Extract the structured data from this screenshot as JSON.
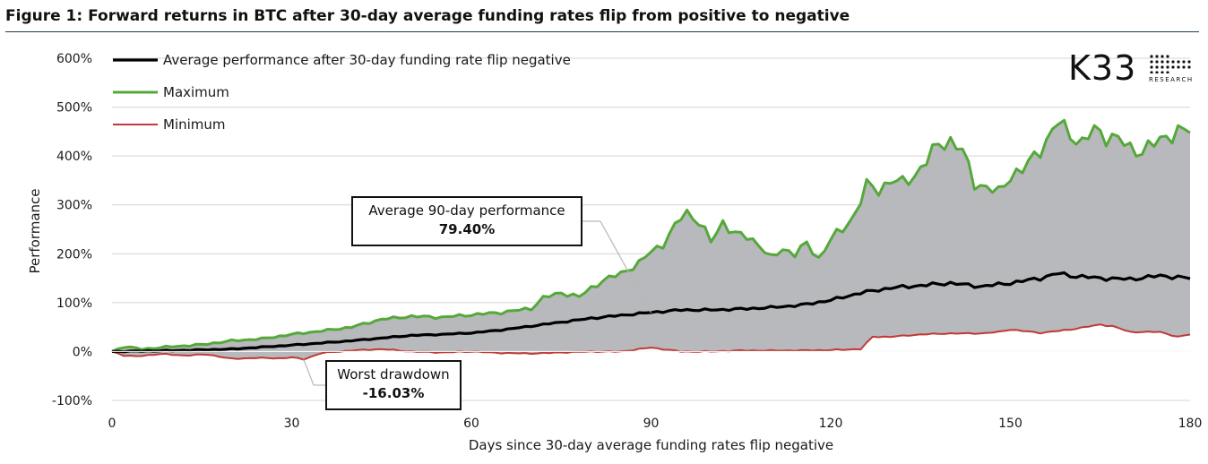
{
  "figure": {
    "title": "Figure 1: Forward returns in BTC after 30-day average funding rates flip from positive to negative"
  },
  "logo": {
    "mark": "K33",
    "sub": "RESEARCH"
  },
  "colors": {
    "average": "#000000",
    "maximum": "#55a83a",
    "minimum": "#c03a35",
    "fill": "#b8b9bc",
    "grid": "#d4d4d4"
  },
  "annotations": {
    "avg": {
      "label": "Average 90-day performance",
      "value": "79.40%"
    },
    "dd": {
      "label": "Worst drawdown",
      "value": "-16.03%"
    }
  },
  "chart_data": {
    "type": "line",
    "title": "",
    "xlabel": "Days since 30-day average funding rates flip negative",
    "ylabel": "Performance",
    "xlim": [
      0,
      180
    ],
    "ylim": [
      -100,
      600
    ],
    "xticks": [
      0,
      30,
      60,
      90,
      120,
      150,
      180
    ],
    "yticks": [
      -100,
      0,
      100,
      200,
      300,
      400,
      500,
      600
    ],
    "ytick_labels": [
      "-100%",
      "0%",
      "100%",
      "200%",
      "300%",
      "400%",
      "500%",
      "600%"
    ],
    "legend_position": "top-left",
    "fill_between": [
      "Maximum",
      "Minimum"
    ],
    "series": [
      {
        "name": "Average performance after 30-day funding rate flip negative",
        "knots": [
          [
            0,
            0
          ],
          [
            10,
            2
          ],
          [
            20,
            5
          ],
          [
            30,
            13
          ],
          [
            40,
            22
          ],
          [
            50,
            33
          ],
          [
            55,
            35
          ],
          [
            60,
            38
          ],
          [
            65,
            44
          ],
          [
            70,
            52
          ],
          [
            75,
            60
          ],
          [
            80,
            68
          ],
          [
            85,
            74
          ],
          [
            90,
            80
          ],
          [
            95,
            85
          ],
          [
            100,
            85
          ],
          [
            105,
            87
          ],
          [
            110,
            90
          ],
          [
            115,
            95
          ],
          [
            120,
            105
          ],
          [
            125,
            120
          ],
          [
            130,
            130
          ],
          [
            135,
            135
          ],
          [
            140,
            140
          ],
          [
            145,
            133
          ],
          [
            150,
            140
          ],
          [
            155,
            150
          ],
          [
            158,
            160
          ],
          [
            160,
            155
          ],
          [
            165,
            150
          ],
          [
            170,
            148
          ],
          [
            175,
            155
          ],
          [
            180,
            150
          ]
        ]
      },
      {
        "name": "Maximum",
        "knots": [
          [
            0,
            0
          ],
          [
            2,
            10
          ],
          [
            5,
            5
          ],
          [
            10,
            10
          ],
          [
            15,
            14
          ],
          [
            20,
            22
          ],
          [
            25,
            26
          ],
          [
            30,
            35
          ],
          [
            35,
            42
          ],
          [
            40,
            50
          ],
          [
            45,
            66
          ],
          [
            50,
            72
          ],
          [
            55,
            70
          ],
          [
            60,
            75
          ],
          [
            65,
            80
          ],
          [
            70,
            88
          ],
          [
            72,
            110
          ],
          [
            75,
            120
          ],
          [
            78,
            112
          ],
          [
            80,
            130
          ],
          [
            82,
            145
          ],
          [
            85,
            160
          ],
          [
            88,
            180
          ],
          [
            90,
            205
          ],
          [
            92,
            220
          ],
          [
            94,
            255
          ],
          [
            95,
            275
          ],
          [
            96,
            285
          ],
          [
            98,
            265
          ],
          [
            100,
            225
          ],
          [
            102,
            265
          ],
          [
            104,
            240
          ],
          [
            106,
            235
          ],
          [
            108,
            220
          ],
          [
            110,
            190
          ],
          [
            112,
            210
          ],
          [
            114,
            200
          ],
          [
            116,
            220
          ],
          [
            118,
            190
          ],
          [
            120,
            230
          ],
          [
            122,
            250
          ],
          [
            124,
            280
          ],
          [
            126,
            340
          ],
          [
            128,
            330
          ],
          [
            130,
            350
          ],
          [
            132,
            345
          ],
          [
            134,
            360
          ],
          [
            136,
            390
          ],
          [
            138,
            425
          ],
          [
            140,
            430
          ],
          [
            142,
            410
          ],
          [
            144,
            345
          ],
          [
            146,
            335
          ],
          [
            148,
            325
          ],
          [
            150,
            360
          ],
          [
            152,
            370
          ],
          [
            154,
            400
          ],
          [
            156,
            430
          ],
          [
            158,
            470
          ],
          [
            160,
            445
          ],
          [
            162,
            425
          ],
          [
            164,
            455
          ],
          [
            166,
            440
          ],
          [
            168,
            435
          ],
          [
            170,
            415
          ],
          [
            172,
            410
          ],
          [
            174,
            425
          ],
          [
            176,
            440
          ],
          [
            178,
            450
          ],
          [
            180,
            452
          ]
        ]
      },
      {
        "name": "Minimum",
        "knots": [
          [
            0,
            0
          ],
          [
            2,
            -8
          ],
          [
            4,
            -10
          ],
          [
            8,
            -5
          ],
          [
            12,
            -8
          ],
          [
            16,
            -6
          ],
          [
            20,
            -15
          ],
          [
            24,
            -13
          ],
          [
            28,
            -14
          ],
          [
            30,
            -12
          ],
          [
            32,
            -16
          ],
          [
            35,
            -3
          ],
          [
            40,
            2
          ],
          [
            45,
            5
          ],
          [
            50,
            0
          ],
          [
            55,
            -2
          ],
          [
            60,
            0
          ],
          [
            65,
            -3
          ],
          [
            70,
            -4
          ],
          [
            75,
            -2
          ],
          [
            80,
            0
          ],
          [
            85,
            0
          ],
          [
            90,
            8
          ],
          [
            95,
            0
          ],
          [
            100,
            0
          ],
          [
            105,
            2
          ],
          [
            110,
            2
          ],
          [
            115,
            2
          ],
          [
            120,
            3
          ],
          [
            125,
            5
          ],
          [
            127,
            30
          ],
          [
            130,
            30
          ],
          [
            135,
            35
          ],
          [
            140,
            37
          ],
          [
            145,
            37
          ],
          [
            148,
            40
          ],
          [
            150,
            45
          ],
          [
            155,
            38
          ],
          [
            160,
            45
          ],
          [
            165,
            55
          ],
          [
            167,
            52
          ],
          [
            170,
            40
          ],
          [
            175,
            40
          ],
          [
            178,
            30
          ],
          [
            180,
            35
          ]
        ]
      }
    ]
  }
}
